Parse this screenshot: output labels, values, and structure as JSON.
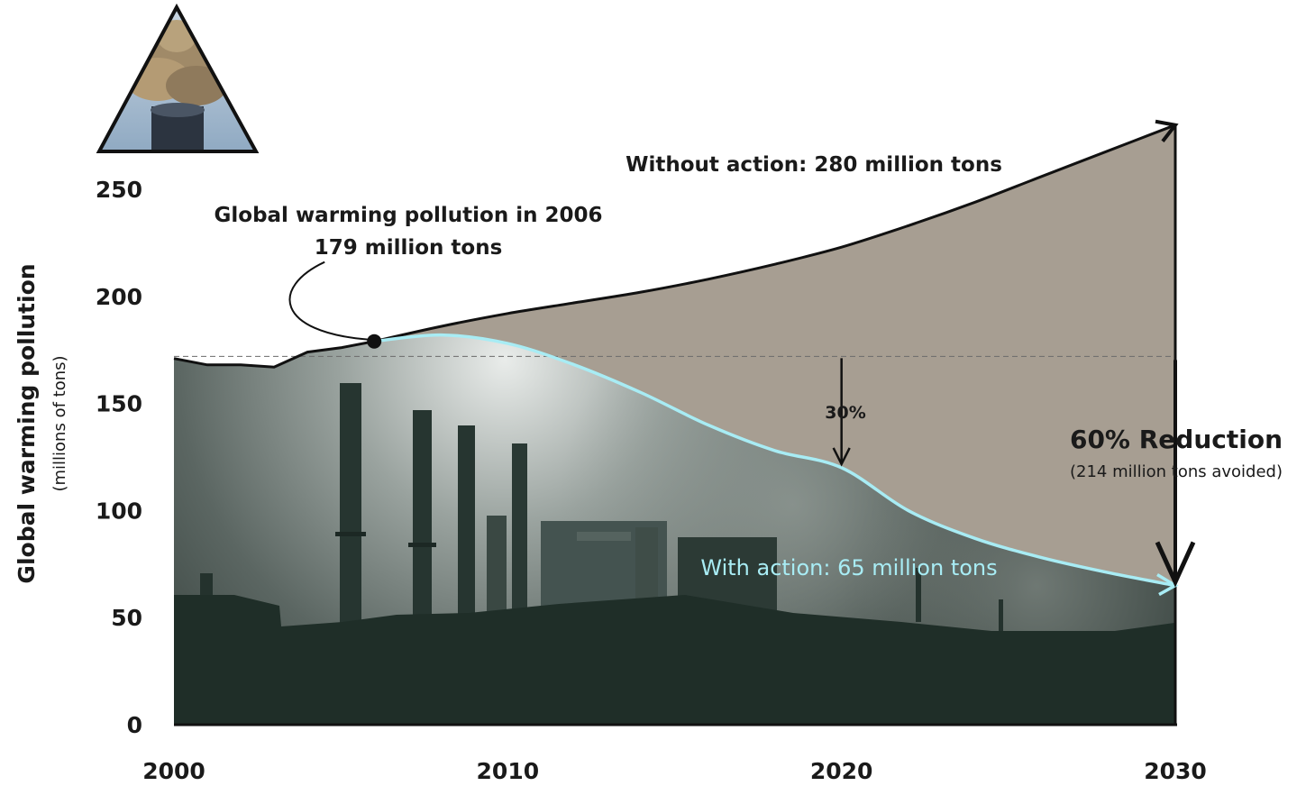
{
  "chart_data": {
    "type": "area",
    "title": "",
    "ylabel": "Global warming pollution",
    "ylabel_sub": "(millions of tons)",
    "xlim": [
      2000,
      2030
    ],
    "ylim": [
      0,
      250
    ],
    "x_ticks": [
      "2000",
      "2010",
      "2020",
      "2030"
    ],
    "y_ticks": [
      "0",
      "50",
      "100",
      "150",
      "200",
      "250"
    ],
    "reference_line": {
      "value": 172,
      "style": "dashed"
    },
    "series": [
      {
        "key": "historical",
        "x": [
          2000,
          2001,
          2002,
          2003,
          2004,
          2005,
          2006
        ],
        "y": [
          171,
          168,
          168,
          167,
          174,
          176,
          179
        ]
      },
      {
        "key": "without_action",
        "x": [
          2006,
          2008,
          2010,
          2012,
          2014,
          2016,
          2018,
          2020,
          2022,
          2024,
          2026,
          2028,
          2030
        ],
        "y": [
          179,
          186,
          192,
          197,
          202,
          208,
          215,
          223,
          233,
          244,
          256,
          268,
          280
        ]
      },
      {
        "key": "with_action",
        "x": [
          2006,
          2008,
          2010,
          2012,
          2014,
          2016,
          2018,
          2020,
          2022,
          2024,
          2026,
          2028,
          2030
        ],
        "y": [
          179,
          182,
          178,
          168,
          155,
          140,
          128,
          120,
          100,
          87,
          78,
          71,
          65
        ]
      }
    ],
    "annotations": {
      "pollution_2006_line1": "Global warming pollution in 2006",
      "pollution_2006_line2": "179 million tons",
      "without_action": "Without action: 280 million tons",
      "with_action": "With action: 65 million tons",
      "pct30": "30%",
      "reduction": "60% Reduction",
      "reduction_sub": "(214 million tons avoided)"
    }
  },
  "colors": {
    "wedge": "#a79e92",
    "sky_light": "#dfe3e1",
    "sky_dark": "#2f3a36",
    "ground": "#1f2e28",
    "with_action_line": "#a8ecf4",
    "dark_line": "#111111",
    "icon_triangle": "#9fb6cc"
  },
  "icons": {
    "logo": "smokestack-triangle-icon"
  }
}
